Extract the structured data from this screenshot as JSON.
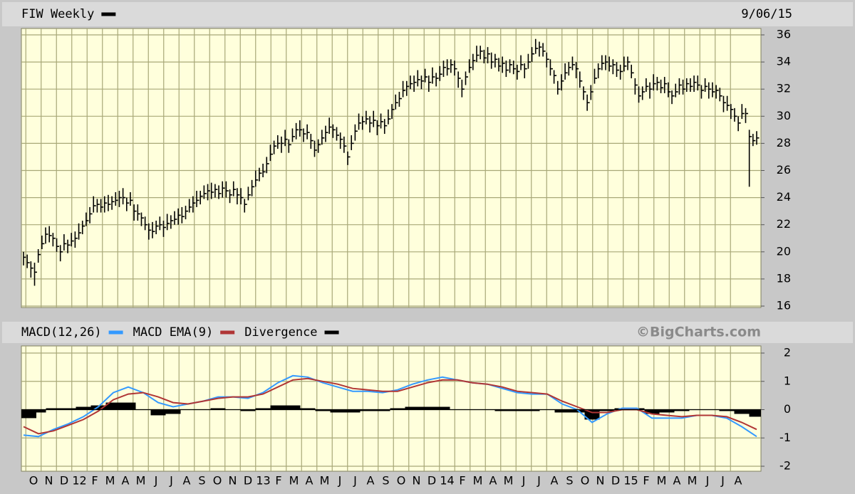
{
  "chart_data": [
    {
      "type": "ohlc",
      "title": "FIW Weekly",
      "date": "9/06/15",
      "grid": true,
      "ylim": [
        16,
        36
      ],
      "yticks": [
        16,
        18,
        20,
        22,
        24,
        26,
        28,
        30,
        32,
        34,
        36
      ],
      "series": [
        {
          "name": "FIW Weekly",
          "color": "#000000",
          "high": [
            20.0,
            19.8,
            19.3,
            19.2,
            20.2,
            21.2,
            21.8,
            21.9,
            21.4,
            21.0,
            20.5,
            21.3,
            20.9,
            21.4,
            21.5,
            22.1,
            22.3,
            22.9,
            23.3,
            24.1,
            23.9,
            23.9,
            24.1,
            24.2,
            24.1,
            24.4,
            24.5,
            24.7,
            24.0,
            24.4,
            23.5,
            23.5,
            22.9,
            22.6,
            22.1,
            22.2,
            22.3,
            22.6,
            22.3,
            22.8,
            22.7,
            23.0,
            23.2,
            23.3,
            23.4,
            23.9,
            24.1,
            24.5,
            24.5,
            24.9,
            25.0,
            25.1,
            25.0,
            24.9,
            25.2,
            25.2,
            24.6,
            25.2,
            24.7,
            24.7,
            23.9,
            24.8,
            25.3,
            26.0,
            26.2,
            26.5,
            27.0,
            27.9,
            28.2,
            28.6,
            28.5,
            29.0,
            28.3,
            29.1,
            29.5,
            29.7,
            29.1,
            29.4,
            28.7,
            28.2,
            28.3,
            29.0,
            29.3,
            29.9,
            29.4,
            29.2,
            28.8,
            28.5,
            27.4,
            28.6,
            29.4,
            30.2,
            30.0,
            30.4,
            30.0,
            30.4,
            29.7,
            30.2,
            29.8,
            30.5,
            30.9,
            31.6,
            31.8,
            32.6,
            32.6,
            33.0,
            33.0,
            33.4,
            33.0,
            33.5,
            33.0,
            33.6,
            33.2,
            33.7,
            34.1,
            34.2,
            34.2,
            34.1,
            33.3,
            32.7,
            33.3,
            34.2,
            34.6,
            35.2,
            35.2,
            34.9,
            35.1,
            34.7,
            34.6,
            34.3,
            34.4,
            34.1,
            34.2,
            34.1,
            33.8,
            34.5,
            33.9,
            34.6,
            35.1,
            35.7,
            35.5,
            35.4,
            34.7,
            34.2,
            33.4,
            32.6,
            33.1,
            33.9,
            34.0,
            34.4,
            34.0,
            33.3,
            32.2,
            31.6,
            32.3,
            33.5,
            33.9,
            34.5,
            34.5,
            34.4,
            34.2,
            34.0,
            33.8,
            34.4,
            34.4,
            33.8,
            32.8,
            32.2,
            32.2,
            32.8,
            32.5,
            33.1,
            32.9,
            32.7,
            32.9,
            32.5,
            31.9,
            32.4,
            32.8,
            32.7,
            32.8,
            32.8,
            33.0,
            33.0,
            32.3,
            32.8,
            32.5,
            32.5,
            32.3,
            32.1,
            31.5,
            31.5,
            30.9,
            30.6,
            30.0,
            30.9,
            30.6,
            29.0,
            28.7,
            28.9
          ],
          "low": [
            19.0,
            18.8,
            18.1,
            17.5,
            19.2,
            20.2,
            20.6,
            20.7,
            20.4,
            20.0,
            19.3,
            20.1,
            19.9,
            20.4,
            20.3,
            20.9,
            21.3,
            21.9,
            22.1,
            22.9,
            22.9,
            22.9,
            22.9,
            23.0,
            23.1,
            23.4,
            23.3,
            23.5,
            23.0,
            23.4,
            22.3,
            22.3,
            21.9,
            21.6,
            20.9,
            21.0,
            21.3,
            21.6,
            21.1,
            21.6,
            21.7,
            22.0,
            22.0,
            22.1,
            22.4,
            22.9,
            22.9,
            23.3,
            23.5,
            23.9,
            23.8,
            23.9,
            24.0,
            23.9,
            24.0,
            24.0,
            23.6,
            24.1,
            23.5,
            23.5,
            22.9,
            23.8,
            24.1,
            24.8,
            25.2,
            25.5,
            25.8,
            26.7,
            27.2,
            27.6,
            27.3,
            27.8,
            27.3,
            28.1,
            28.3,
            28.5,
            28.1,
            28.3,
            27.6,
            27.0,
            27.3,
            27.9,
            28.1,
            28.7,
            28.4,
            28.2,
            27.6,
            27.3,
            26.4,
            27.5,
            28.2,
            29.0,
            29.0,
            29.4,
            28.8,
            29.2,
            28.6,
            29.1,
            28.7,
            29.4,
            29.8,
            30.5,
            30.7,
            31.4,
            31.5,
            32.0,
            31.8,
            32.2,
            32.0,
            32.5,
            31.8,
            32.4,
            32.2,
            32.6,
            32.9,
            33.0,
            33.2,
            33.0,
            32.1,
            31.4,
            32.3,
            33.2,
            33.4,
            34.0,
            34.2,
            33.9,
            33.9,
            33.5,
            33.6,
            33.3,
            33.2,
            32.9,
            33.2,
            33.1,
            32.7,
            33.4,
            32.8,
            33.5,
            34.0,
            34.6,
            34.4,
            34.4,
            33.6,
            33.0,
            32.4,
            31.6,
            31.9,
            32.7,
            33.0,
            33.4,
            32.8,
            32.1,
            31.2,
            30.4,
            31.2,
            32.4,
            32.8,
            33.4,
            33.4,
            33.3,
            33.1,
            32.9,
            32.7,
            33.3,
            33.4,
            32.8,
            31.6,
            31.0,
            31.2,
            31.8,
            31.3,
            31.9,
            31.9,
            31.7,
            31.7,
            31.4,
            30.9,
            31.4,
            31.6,
            31.6,
            31.8,
            31.8,
            31.8,
            31.9,
            31.3,
            31.8,
            31.3,
            31.4,
            31.3,
            31.1,
            30.3,
            30.4,
            29.8,
            29.6,
            28.9,
            29.8,
            29.5,
            24.8,
            27.8,
            27.9
          ],
          "close": [
            19.6,
            19.2,
            18.8,
            18.5,
            19.8,
            20.6,
            21.3,
            21.2,
            21.0,
            20.4,
            20.0,
            20.6,
            20.5,
            20.8,
            21.0,
            21.4,
            21.9,
            22.3,
            22.8,
            23.4,
            23.5,
            23.3,
            23.6,
            23.5,
            23.7,
            23.8,
            24.0,
            24.0,
            23.6,
            23.8,
            23.0,
            22.8,
            22.5,
            22.0,
            21.6,
            21.5,
            21.9,
            22.0,
            21.8,
            22.1,
            22.3,
            22.4,
            22.7,
            22.6,
            23.0,
            23.3,
            23.6,
            23.8,
            24.1,
            24.3,
            24.5,
            24.4,
            24.6,
            24.3,
            24.7,
            24.5,
            24.2,
            24.6,
            24.2,
            24.0,
            23.5,
            24.2,
            24.8,
            25.3,
            25.8,
            25.9,
            26.5,
            27.2,
            27.8,
            28.0,
            28.0,
            28.3,
            27.9,
            28.5,
            29.0,
            29.0,
            28.7,
            28.8,
            28.2,
            27.5,
            27.9,
            28.4,
            28.8,
            29.2,
            29.0,
            28.6,
            28.3,
            27.8,
            27.0,
            28.0,
            28.9,
            29.5,
            29.6,
            29.8,
            29.5,
            29.7,
            29.3,
            29.6,
            29.3,
            29.8,
            30.5,
            31.0,
            31.3,
            31.9,
            32.2,
            32.4,
            32.5,
            32.7,
            32.6,
            32.9,
            32.5,
            32.9,
            32.8,
            33.1,
            33.6,
            33.5,
            33.8,
            33.5,
            32.8,
            32.0,
            32.9,
            33.6,
            34.1,
            34.5,
            34.8,
            34.3,
            34.6,
            34.0,
            34.2,
            33.7,
            33.9,
            33.4,
            33.8,
            33.5,
            33.3,
            33.8,
            33.5,
            34.0,
            34.6,
            35.0,
            35.1,
            34.8,
            34.2,
            33.5,
            33.0,
            32.0,
            32.6,
            33.2,
            33.6,
            33.8,
            33.5,
            32.6,
            31.8,
            31.0,
            31.8,
            32.8,
            33.5,
            33.9,
            34.0,
            33.7,
            33.8,
            33.4,
            33.3,
            33.7,
            34.0,
            33.2,
            32.3,
            31.5,
            31.8,
            32.2,
            32.0,
            32.4,
            32.5,
            32.1,
            32.4,
            31.8,
            31.5,
            31.8,
            32.3,
            32.0,
            32.4,
            32.2,
            32.5,
            32.3,
            31.9,
            32.2,
            32.0,
            31.8,
            31.9,
            31.5,
            31.0,
            30.8,
            30.5,
            30.0,
            29.5,
            30.2,
            30.2,
            28.5,
            28.2,
            28.4
          ]
        }
      ]
    },
    {
      "type": "macd",
      "credit": "©BigCharts.com",
      "grid": true,
      "ylim": [
        -2,
        2
      ],
      "yticks": [
        -2,
        -1,
        0,
        1,
        2
      ],
      "xtick_labels": [
        "O",
        "N",
        "D",
        "12",
        "F",
        "M",
        "A",
        "M",
        "J",
        "J",
        "A",
        "S",
        "O",
        "N",
        "D",
        "13",
        "F",
        "M",
        "A",
        "M",
        "J",
        "J",
        "A",
        "S",
        "O",
        "N",
        "D",
        "14",
        "F",
        "M",
        "A",
        "M",
        "J",
        "J",
        "A",
        "S",
        "O",
        "N",
        "D",
        "15",
        "F",
        "M",
        "A",
        "M",
        "J",
        "J",
        "A"
      ],
      "series": [
        {
          "name": "MACD(12,26)",
          "color": "#3399ff",
          "type": "line",
          "values": [
            -0.9,
            -0.95,
            -0.7,
            -0.5,
            -0.25,
            0.1,
            0.6,
            0.8,
            0.6,
            0.25,
            0.1,
            0.2,
            0.3,
            0.45,
            0.45,
            0.4,
            0.6,
            0.95,
            1.2,
            1.15,
            0.95,
            0.8,
            0.65,
            0.65,
            0.6,
            0.7,
            0.9,
            1.05,
            1.15,
            1.05,
            0.95,
            0.9,
            0.75,
            0.6,
            0.55,
            0.55,
            0.2,
            0.0,
            -0.45,
            -0.15,
            0.05,
            0.05,
            -0.3,
            -0.3,
            -0.3,
            -0.2,
            -0.2,
            -0.3,
            -0.6,
            -0.95
          ]
        },
        {
          "name": "MACD EMA(9)",
          "color": "#b03535",
          "type": "line",
          "values": [
            -0.6,
            -0.85,
            -0.75,
            -0.55,
            -0.35,
            -0.05,
            0.35,
            0.55,
            0.6,
            0.45,
            0.25,
            0.2,
            0.3,
            0.4,
            0.45,
            0.45,
            0.55,
            0.8,
            1.05,
            1.1,
            1.0,
            0.9,
            0.75,
            0.7,
            0.65,
            0.65,
            0.8,
            0.95,
            1.05,
            1.05,
            0.95,
            0.9,
            0.8,
            0.65,
            0.6,
            0.55,
            0.3,
            0.1,
            -0.1,
            -0.1,
            0.0,
            0.0,
            -0.15,
            -0.2,
            -0.25,
            -0.2,
            -0.2,
            -0.25,
            -0.45,
            -0.7
          ]
        },
        {
          "name": "Divergence",
          "color": "#000000",
          "type": "bar",
          "values": [
            -0.3,
            -0.1,
            0.05,
            0.05,
            0.1,
            0.15,
            0.25,
            0.25,
            0.0,
            -0.2,
            -0.15,
            0.0,
            0.0,
            0.05,
            0.0,
            -0.05,
            0.05,
            0.15,
            0.15,
            0.05,
            -0.05,
            -0.1,
            -0.1,
            -0.05,
            -0.05,
            0.05,
            0.1,
            0.1,
            0.1,
            0.0,
            0.0,
            0.0,
            -0.05,
            -0.05,
            -0.05,
            0.0,
            -0.1,
            -0.1,
            -0.35,
            -0.05,
            0.05,
            0.05,
            -0.15,
            -0.1,
            -0.05,
            0.0,
            0.0,
            -0.05,
            -0.15,
            -0.25
          ]
        }
      ]
    }
  ]
}
